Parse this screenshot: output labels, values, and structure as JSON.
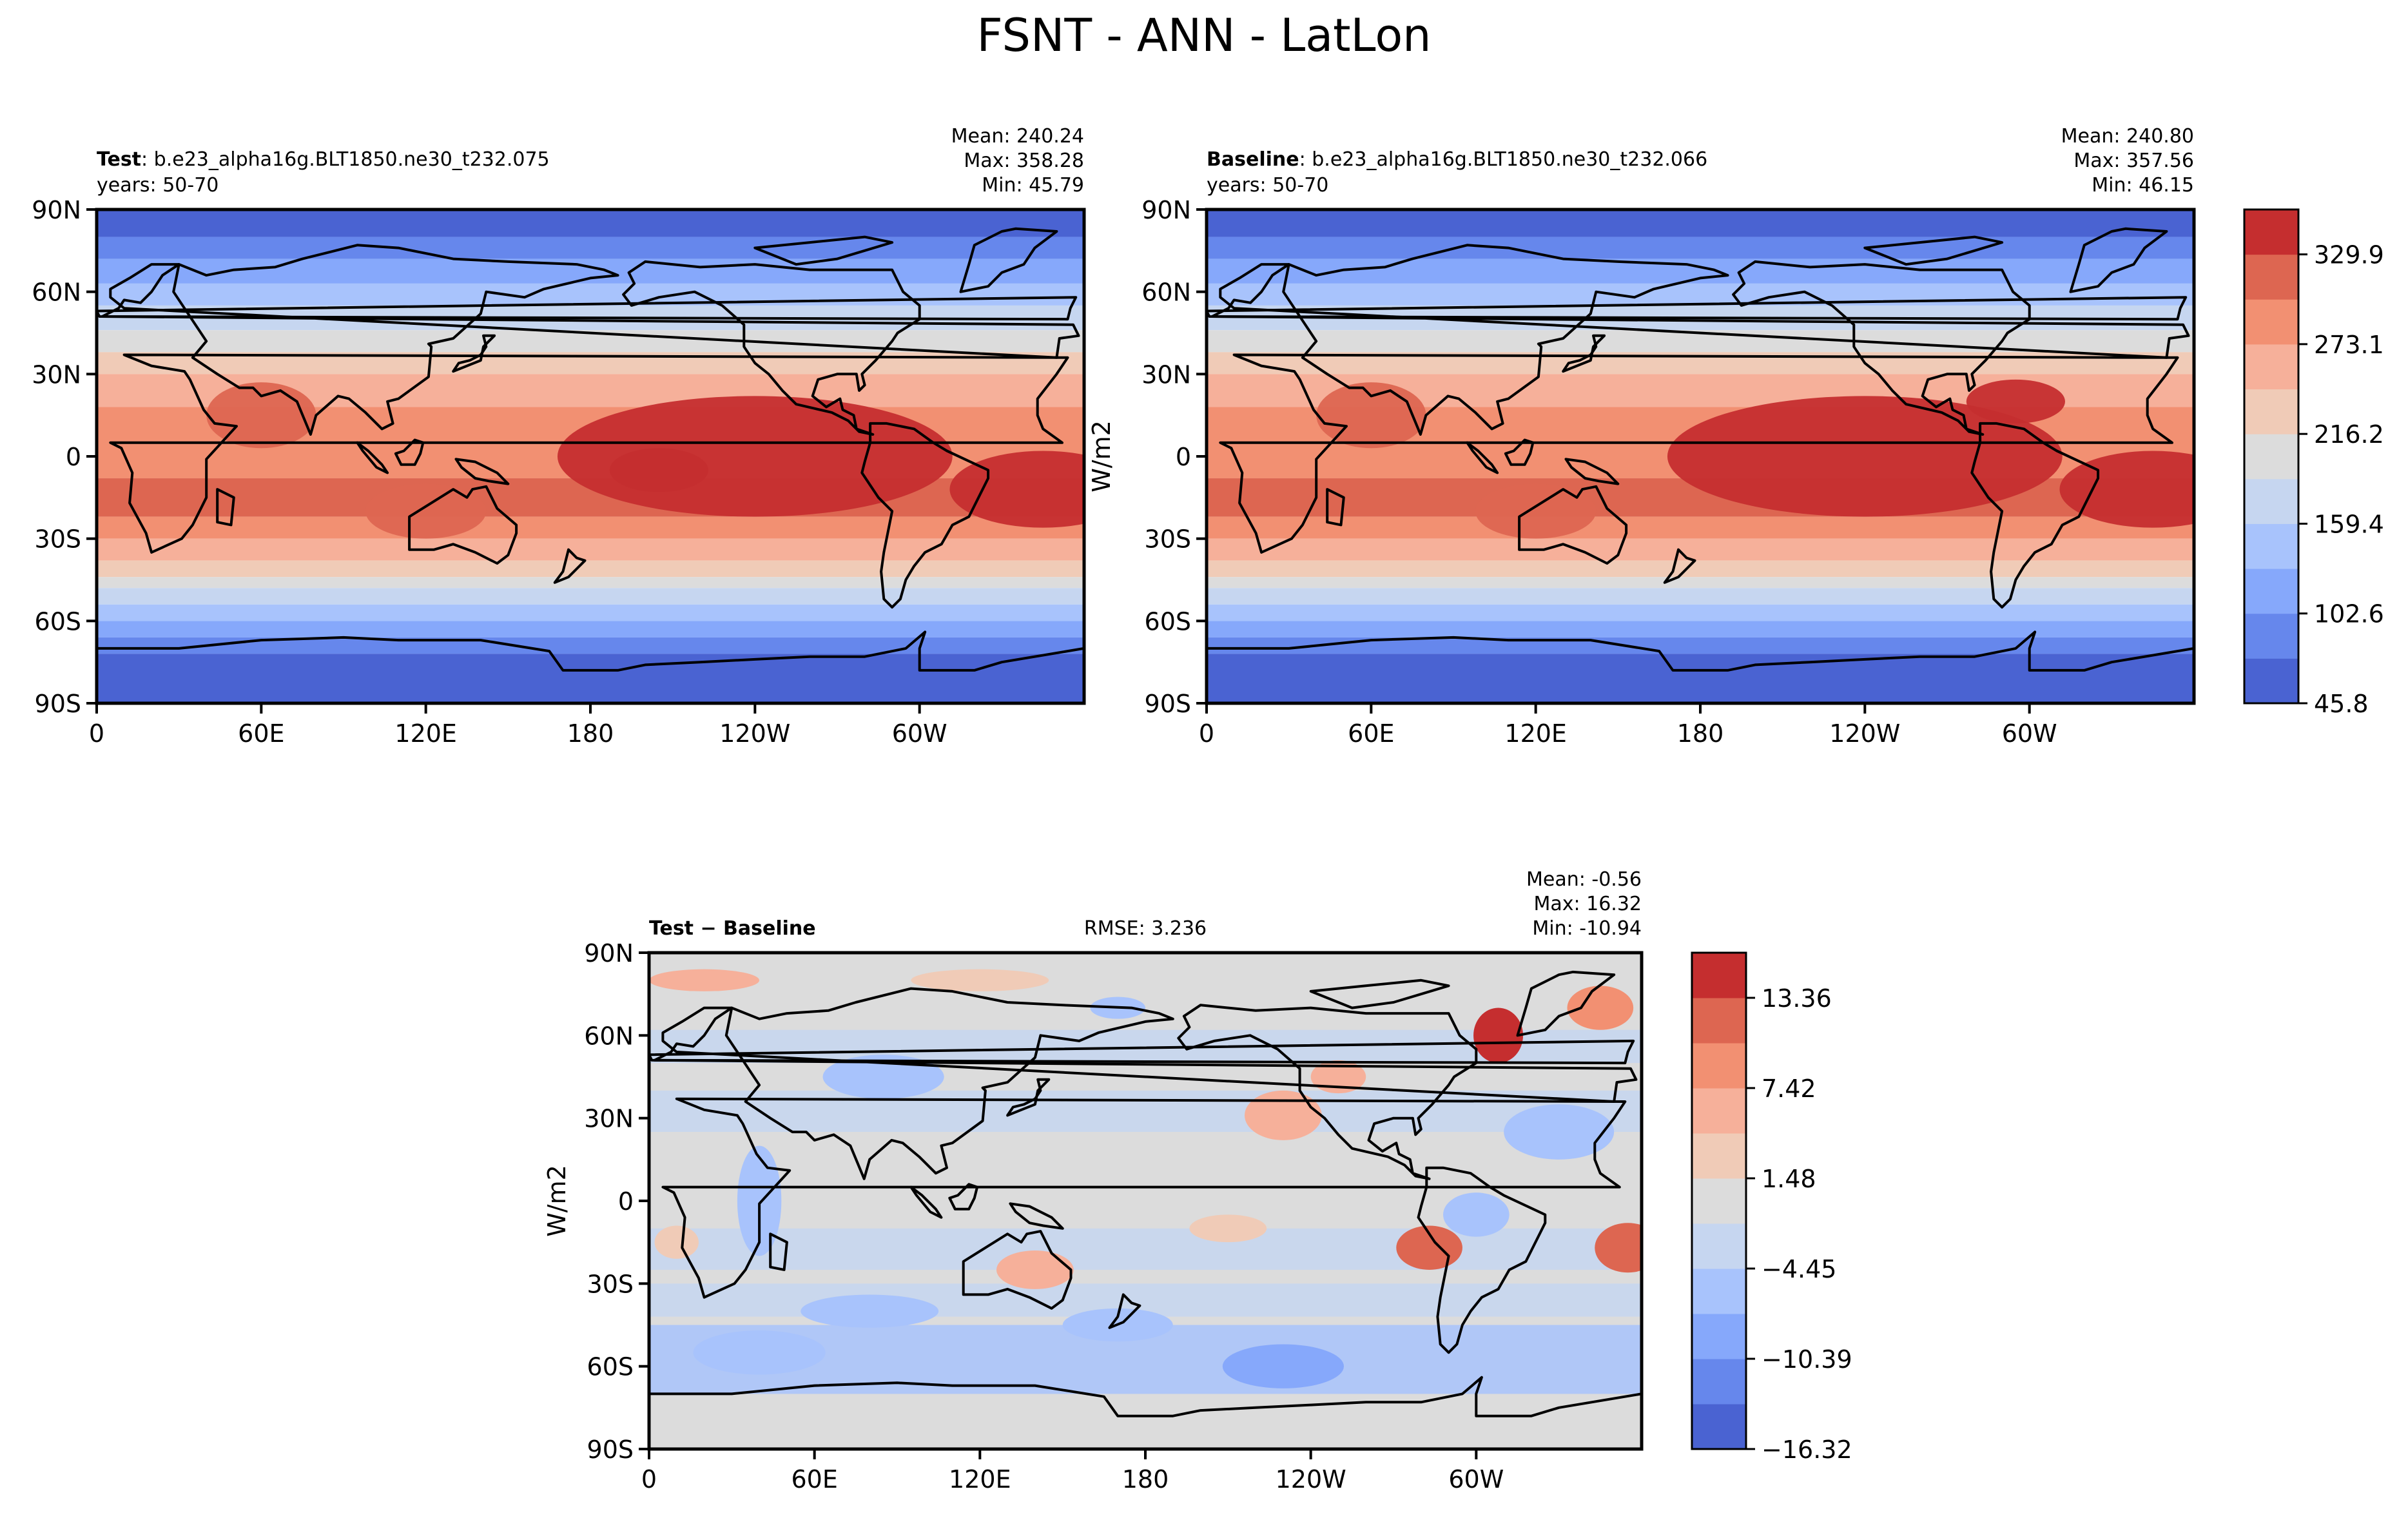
{
  "figure": {
    "title": "FSNT - ANN - LatLon"
  },
  "palettes": {
    "field": [
      "#4a63d2",
      "#6687ec",
      "#86a8fb",
      "#a8c3fc",
      "#c6d6f0",
      "#dcdcdc",
      "#f0cbb7",
      "#f6b09a",
      "#f29072",
      "#dd6651",
      "#c52e2f"
    ],
    "diff": [
      "#4a63d2",
      "#6687ec",
      "#86a8fb",
      "#a8c3fc",
      "#c6d6f0",
      "#dcdcdc",
      "#f0cbb7",
      "#f6b09a",
      "#f29072",
      "#dd6651",
      "#c52e2f"
    ]
  },
  "chart_data": [
    {
      "type": "heatmap",
      "id": "test",
      "title_bold": "Test",
      "title_rest": ": b.e23_alpha16g.BLT1850.ne30_t232.075",
      "subtitle": "years: 50-70",
      "stats": [
        "Mean: 240.24",
        "Max: 358.28",
        "Min: 45.79"
      ],
      "xticks": [
        "0",
        "60E",
        "120E",
        "180",
        "120W",
        "60W"
      ],
      "yticks": [
        "90N",
        "60N",
        "30N",
        "0",
        "30S",
        "60S",
        "90S"
      ],
      "xlim": [
        0,
        360
      ],
      "ylim": [
        -90,
        90
      ],
      "mean": 240.24,
      "max": 358.28,
      "min": 45.79,
      "palette": "field"
    },
    {
      "type": "heatmap",
      "id": "baseline",
      "title_bold": "Baseline",
      "title_rest": ": b.e23_alpha16g.BLT1850.ne30_t232.066",
      "subtitle": "years: 50-70",
      "stats": [
        "Mean: 240.80",
        "Max: 357.56",
        "Min: 46.15"
      ],
      "xticks": [
        "0",
        "60E",
        "120E",
        "180",
        "120W",
        "60W"
      ],
      "yticks": [
        "90N",
        "60N",
        "30N",
        "0",
        "30S",
        "60S",
        "90S"
      ],
      "xlim": [
        0,
        360
      ],
      "ylim": [
        -90,
        90
      ],
      "mean": 240.8,
      "max": 357.56,
      "min": 46.15,
      "palette": "field",
      "ylabel": "W/m2",
      "colorbar": {
        "ticks": [
          "329.9",
          "273.1",
          "216.2",
          "159.4",
          "102.6",
          "45.8"
        ],
        "levels": 11
      }
    },
    {
      "type": "heatmap",
      "id": "diff",
      "title_bold": "Test − Baseline",
      "rmse": "RMSE: 3.236",
      "stats": [
        "Mean: -0.56",
        "Max: 16.32",
        "Min: -10.94"
      ],
      "xticks": [
        "0",
        "60E",
        "120E",
        "180",
        "120W",
        "60W"
      ],
      "yticks": [
        "90N",
        "60N",
        "30N",
        "0",
        "30S",
        "60S",
        "90S"
      ],
      "xlim": [
        0,
        360
      ],
      "ylim": [
        -90,
        90
      ],
      "mean": -0.56,
      "max": 16.32,
      "min": -10.94,
      "palette": "diff",
      "ylabel": "W/m2",
      "colorbar": {
        "ticks": [
          "13.36",
          "7.42",
          "1.48",
          "−4.45",
          "−10.39",
          "−16.32"
        ],
        "levels": 11
      }
    }
  ]
}
